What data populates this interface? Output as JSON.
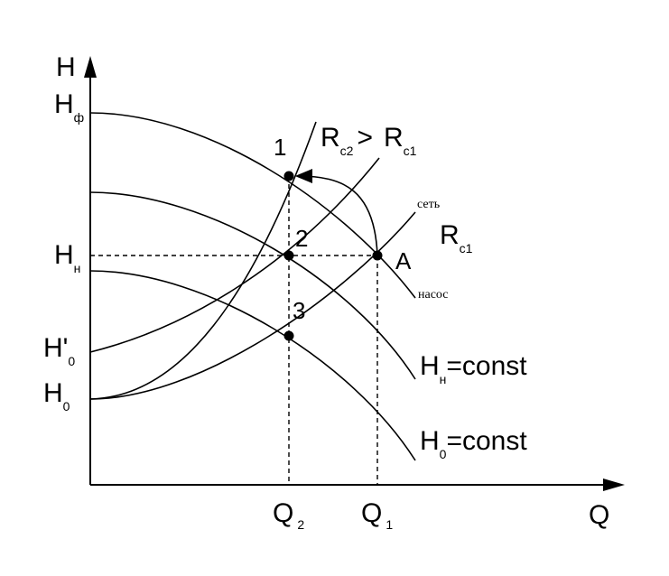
{
  "axes": {
    "y_label": "H",
    "x_label": "Q"
  },
  "y_labels": [
    {
      "main": "H",
      "sub": "ф"
    },
    {
      "main": "H",
      "sub": "н"
    },
    {
      "main": "H'",
      "sub": "0"
    },
    {
      "main": "H",
      "sub": "0"
    }
  ],
  "x_labels": [
    {
      "main": "Q",
      "sub": "2"
    },
    {
      "main": "Q",
      "sub": "1"
    }
  ],
  "points": [
    "1",
    "2",
    "3",
    "A"
  ],
  "curve_labels": {
    "relation": {
      "left": "R",
      "left_sub": "c2",
      "op": ">",
      "right": "R",
      "right_sub": "c1"
    },
    "network": "сеть",
    "network_r": {
      "main": "R",
      "sub": "c1"
    },
    "pump": "насос",
    "hn_const": {
      "main": "H",
      "sub": "н",
      "rest": "=const"
    },
    "h0_const": {
      "main": "H",
      "sub": "0",
      "rest": "=const"
    }
  }
}
